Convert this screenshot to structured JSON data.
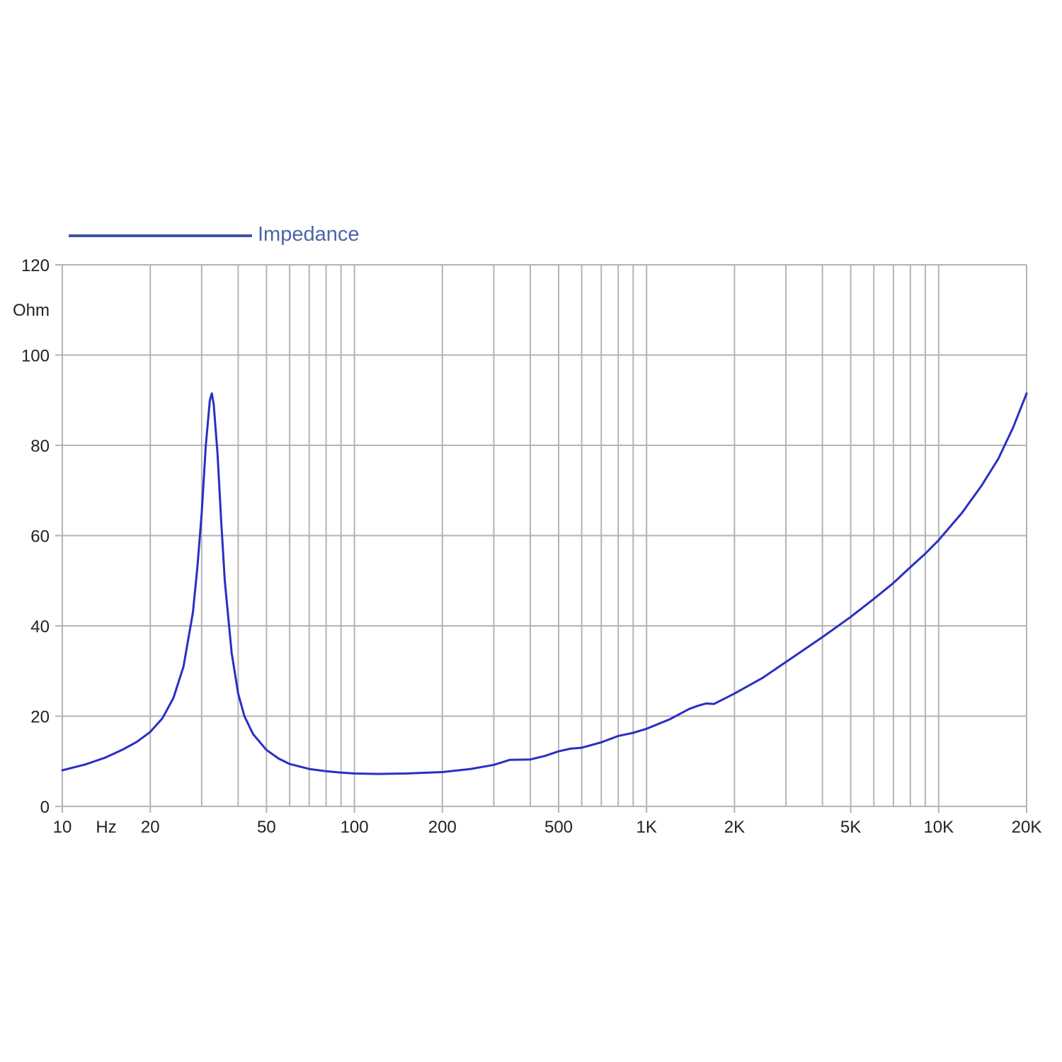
{
  "chart_data": {
    "type": "line",
    "title": "",
    "legend": {
      "placement": "top-left",
      "entries": [
        "Impedance"
      ]
    },
    "xlabel": "Hz",
    "ylabel": "Ohm",
    "x_scale": "log",
    "xlim": [
      10,
      20000
    ],
    "ylim": [
      0,
      120
    ],
    "grid": true,
    "y_ticks": [
      0,
      20,
      40,
      60,
      80,
      100,
      120
    ],
    "x_tick_labels": [
      {
        "value": 10,
        "label": "10"
      },
      {
        "value": 20,
        "label": "20"
      },
      {
        "value": 50,
        "label": "50"
      },
      {
        "value": 100,
        "label": "100"
      },
      {
        "value": 200,
        "label": "200"
      },
      {
        "value": 500,
        "label": "500"
      },
      {
        "value": 1000,
        "label": "1K"
      },
      {
        "value": 2000,
        "label": "2K"
      },
      {
        "value": 5000,
        "label": "5K"
      },
      {
        "value": 10000,
        "label": "10K"
      },
      {
        "value": 20000,
        "label": "20K"
      }
    ],
    "series": [
      {
        "name": "Impedance",
        "color": "#2a2fc4",
        "x": [
          10,
          12,
          14,
          16,
          18,
          20,
          22,
          24,
          26,
          28,
          29,
          30,
          31,
          32,
          32.5,
          33,
          34,
          35,
          36,
          38,
          40,
          42,
          45,
          50,
          55,
          60,
          70,
          80,
          90,
          100,
          120,
          150,
          200,
          250,
          300,
          340,
          400,
          450,
          500,
          550,
          600,
          700,
          800,
          900,
          1000,
          1200,
          1400,
          1500,
          1600,
          1700,
          1800,
          2000,
          2500,
          3000,
          4000,
          5000,
          6000,
          7000,
          8000,
          9000,
          10000,
          12000,
          14000,
          16000,
          18000,
          20000
        ],
        "y": [
          8.0,
          9.3,
          10.8,
          12.5,
          14.3,
          16.5,
          19.5,
          24.0,
          31.0,
          43.0,
          53.0,
          65.0,
          80.0,
          90.0,
          91.5,
          89.0,
          78.0,
          63.0,
          50.0,
          34.0,
          25.0,
          20.0,
          16.0,
          12.5,
          10.6,
          9.4,
          8.3,
          7.8,
          7.5,
          7.3,
          7.2,
          7.3,
          7.6,
          8.3,
          9.2,
          10.3,
          10.4,
          11.2,
          12.2,
          12.8,
          13.0,
          14.2,
          15.6,
          16.3,
          17.2,
          19.3,
          21.6,
          22.3,
          22.8,
          22.7,
          23.5,
          25.0,
          28.5,
          32.0,
          37.5,
          42.0,
          46.0,
          49.5,
          53.0,
          56.0,
          59.0,
          65.0,
          71.0,
          77.0,
          84.0,
          91.5
        ]
      }
    ]
  }
}
